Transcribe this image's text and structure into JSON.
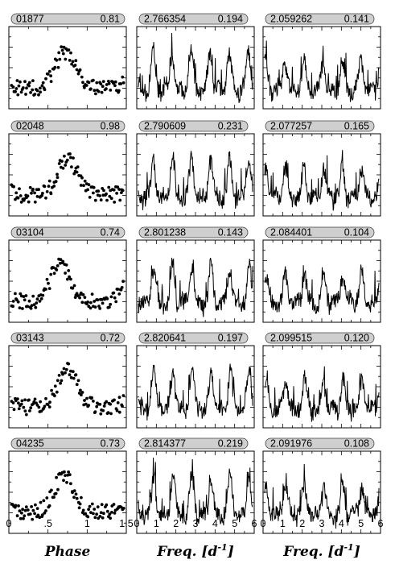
{
  "figure": {
    "columns": [
      {
        "xlabel": "Phase",
        "xlabel_base": "Phase",
        "xlabel_sup": "",
        "xlabel_close": "",
        "xticks": [
          0,
          0.5,
          1,
          1.5
        ],
        "xtick_labels": [
          "0",
          ".5",
          "1",
          "1.5"
        ]
      },
      {
        "xlabel": "Freq. [d^-1]",
        "xlabel_base": "Freq. [d",
        "xlabel_sup": "-1",
        "xlabel_close": "]",
        "xticks": [
          0,
          1,
          2,
          3,
          4,
          5,
          6
        ],
        "xtick_labels": [
          "0",
          "1",
          "2",
          "3",
          "4",
          "5",
          "6"
        ]
      },
      {
        "xlabel": "Freq. [d^-1]",
        "xlabel_base": "Freq. [d",
        "xlabel_sup": "-1",
        "xlabel_close": "]",
        "xticks": [
          0,
          1,
          2,
          3,
          4,
          5,
          6
        ],
        "xtick_labels": [
          "0",
          "1",
          "2",
          "3",
          "4",
          "5",
          "6"
        ]
      }
    ],
    "rows": [
      {
        "phase": {
          "label": "01877",
          "value": "0.81"
        },
        "spec1": {
          "label": "2.766354",
          "value": "0.194"
        },
        "spec2": {
          "label": "2.059262",
          "value": "0.141"
        }
      },
      {
        "phase": {
          "label": "02048",
          "value": "0.98"
        },
        "spec1": {
          "label": "2.790609",
          "value": "0.231"
        },
        "spec2": {
          "label": "2.077257",
          "value": "0.165"
        }
      },
      {
        "phase": {
          "label": "03104",
          "value": "0.74"
        },
        "spec1": {
          "label": "2.801238",
          "value": "0.143"
        },
        "spec2": {
          "label": "2.084401",
          "value": "0.104"
        }
      },
      {
        "phase": {
          "label": "03143",
          "value": "0.72"
        },
        "spec1": {
          "label": "2.820641",
          "value": "0.197"
        },
        "spec2": {
          "label": "2.099515",
          "value": "0.120"
        }
      },
      {
        "phase": {
          "label": "04235",
          "value": "0.73"
        },
        "spec1": {
          "label": "2.814377",
          "value": "0.219"
        },
        "spec2": {
          "label": "2.091976",
          "value": "0.108"
        }
      }
    ]
  },
  "chart_data": [
    {
      "type": "scatter",
      "panel": "01877 phase curve",
      "xlim": [
        0,
        1.5
      ],
      "peak_phase": 0.72,
      "amplitude": 0.81
    },
    {
      "type": "line",
      "panel": "01877 spectrum",
      "xlim": [
        0,
        6
      ],
      "peak_freq": 2.766354,
      "peak_amp": 0.194
    },
    {
      "type": "line",
      "panel": "01877 prewhitened spectrum",
      "xlim": [
        0,
        6
      ],
      "peak_freq": 2.059262,
      "peak_amp": 0.141
    },
    {
      "type": "scatter",
      "panel": "02048 phase curve",
      "xlim": [
        0,
        1.5
      ],
      "peak_phase": 0.75,
      "amplitude": 0.98
    },
    {
      "type": "line",
      "panel": "02048 spectrum",
      "xlim": [
        0,
        6
      ],
      "peak_freq": 2.790609,
      "peak_amp": 0.231
    },
    {
      "type": "line",
      "panel": "02048 prewhitened spectrum",
      "xlim": [
        0,
        6
      ],
      "peak_freq": 2.077257,
      "peak_amp": 0.165
    },
    {
      "type": "scatter",
      "panel": "03104 phase curve",
      "xlim": [
        0,
        1.5
      ],
      "peak_phase": 0.65,
      "amplitude": 0.74
    },
    {
      "type": "line",
      "panel": "03104 spectrum",
      "xlim": [
        0,
        6
      ],
      "peak_freq": 2.801238,
      "peak_amp": 0.143
    },
    {
      "type": "line",
      "panel": "03104 prewhitened spectrum",
      "xlim": [
        0,
        6
      ],
      "peak_freq": 2.084401,
      "peak_amp": 0.104
    },
    {
      "type": "scatter",
      "panel": "03143 phase curve",
      "xlim": [
        0,
        1.5
      ],
      "peak_phase": 0.75,
      "amplitude": 0.72
    },
    {
      "type": "line",
      "panel": "03143 spectrum",
      "xlim": [
        0,
        6
      ],
      "peak_freq": 2.820641,
      "peak_amp": 0.197
    },
    {
      "type": "line",
      "panel": "03143 prewhitened spectrum",
      "xlim": [
        0,
        6
      ],
      "peak_freq": 2.099515,
      "peak_amp": 0.12
    },
    {
      "type": "scatter",
      "panel": "04235 phase curve",
      "xlim": [
        0,
        1.5
      ],
      "peak_phase": 0.7,
      "amplitude": 0.73
    },
    {
      "type": "line",
      "panel": "04235 spectrum",
      "xlim": [
        0,
        6
      ],
      "peak_freq": 2.814377,
      "peak_amp": 0.219
    },
    {
      "type": "line",
      "panel": "04235 prewhitened spectrum",
      "xlim": [
        0,
        6
      ],
      "peak_freq": 2.091976,
      "peak_amp": 0.108
    }
  ]
}
